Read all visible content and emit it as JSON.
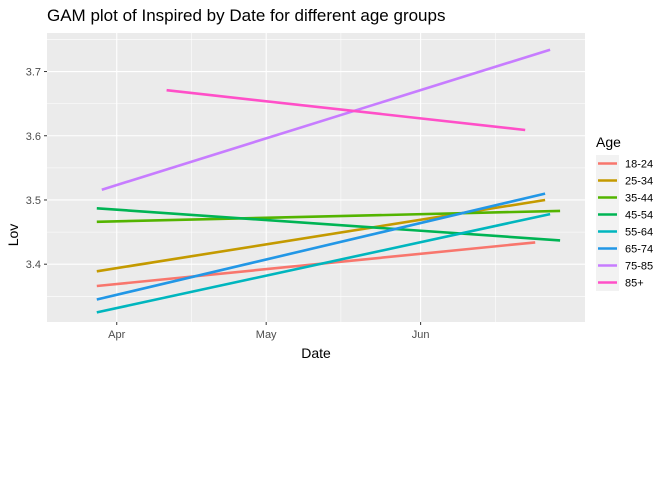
{
  "chart_data": {
    "type": "line",
    "title": "GAM plot of Inspired by Date for different age groups",
    "xlabel": "Date",
    "ylabel": "Lov",
    "x_domain": [
      "2021-03-18",
      "2021-07-04"
    ],
    "ylim": [
      3.31,
      3.76
    ],
    "x_ticks": [
      {
        "date": "2021-04-01",
        "label": "Apr"
      },
      {
        "date": "2021-05-01",
        "label": "May"
      },
      {
        "date": "2021-06-01",
        "label": "Jun"
      }
    ],
    "x_minor_ticks": [
      "2021-04-16",
      "2021-05-16",
      "2021-06-16"
    ],
    "y_ticks": [
      3.4,
      3.5,
      3.6,
      3.7
    ],
    "grid": true,
    "legend": {
      "title": "Age",
      "position": "right"
    },
    "series": [
      {
        "name": "18-24",
        "color": "#F8766D",
        "x": [
          "2021-03-28",
          "2021-06-24"
        ],
        "y": [
          3.366,
          3.434
        ]
      },
      {
        "name": "25-34",
        "color": "#C49A00",
        "x": [
          "2021-03-28",
          "2021-06-26"
        ],
        "y": [
          3.389,
          3.5
        ]
      },
      {
        "name": "35-44",
        "color": "#53B400",
        "x": [
          "2021-03-28",
          "2021-06-29"
        ],
        "y": [
          3.466,
          3.483
        ]
      },
      {
        "name": "45-54",
        "color": "#00B454",
        "x": [
          "2021-03-28",
          "2021-06-29"
        ],
        "y": [
          3.487,
          3.437
        ]
      },
      {
        "name": "55-64",
        "color": "#00B6BE",
        "x": [
          "2021-03-28",
          "2021-06-27"
        ],
        "y": [
          3.325,
          3.478
        ]
      },
      {
        "name": "65-74",
        "color": "#2297E6",
        "x": [
          "2021-03-28",
          "2021-06-26"
        ],
        "y": [
          3.345,
          3.51
        ]
      },
      {
        "name": "75-85",
        "color": "#C77CFF",
        "x": [
          "2021-03-29",
          "2021-06-27"
        ],
        "y": [
          3.516,
          3.734
        ]
      },
      {
        "name": "85+",
        "color": "#FF4FC8",
        "x": [
          "2021-04-11",
          "2021-06-22"
        ],
        "y": [
          3.671,
          3.609
        ]
      }
    ]
  }
}
